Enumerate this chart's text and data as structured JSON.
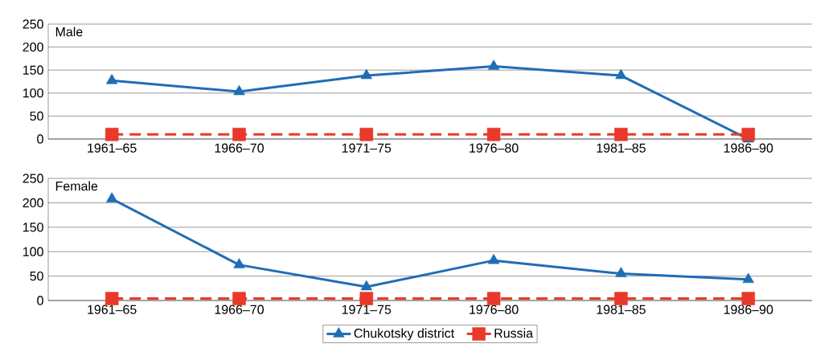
{
  "chart_data": [
    {
      "type": "line",
      "title": "Male",
      "categories": [
        "1961–65",
        "1966–70",
        "1971–75",
        "1976–80",
        "1981–85",
        "1986–90"
      ],
      "ylim": [
        0,
        250
      ],
      "yticks": [
        0,
        50,
        100,
        150,
        200,
        250
      ],
      "grid": "y",
      "series": [
        {
          "color": "#1f6db5",
          "marker": "triangle",
          "line_style": "solid",
          "values": [
            127,
            103,
            138,
            158,
            138,
            0
          ]
        },
        {
          "color": "#e8392a",
          "marker": "square",
          "line_style": "dashed",
          "values": [
            10,
            10,
            10,
            10,
            10,
            10
          ]
        }
      ]
    },
    {
      "type": "line",
      "title": "Female",
      "categories": [
        "1961–65",
        "1966–70",
        "1971–75",
        "1976–80",
        "1981–85",
        "1986–90"
      ],
      "ylim": [
        0,
        250
      ],
      "yticks": [
        0,
        50,
        100,
        150,
        200,
        250
      ],
      "grid": "y",
      "legend": "bottom",
      "series": [
        {
          "name": "Chukotsky district",
          "color": "#1f6db5",
          "marker": "triangle",
          "line_style": "solid",
          "values": [
            208,
            73,
            28,
            82,
            55,
            43
          ]
        },
        {
          "name": "Russia",
          "color": "#e8392a",
          "marker": "square",
          "line_style": "dashed",
          "values": [
            4,
            4,
            4,
            4,
            4,
            4
          ]
        }
      ]
    }
  ]
}
